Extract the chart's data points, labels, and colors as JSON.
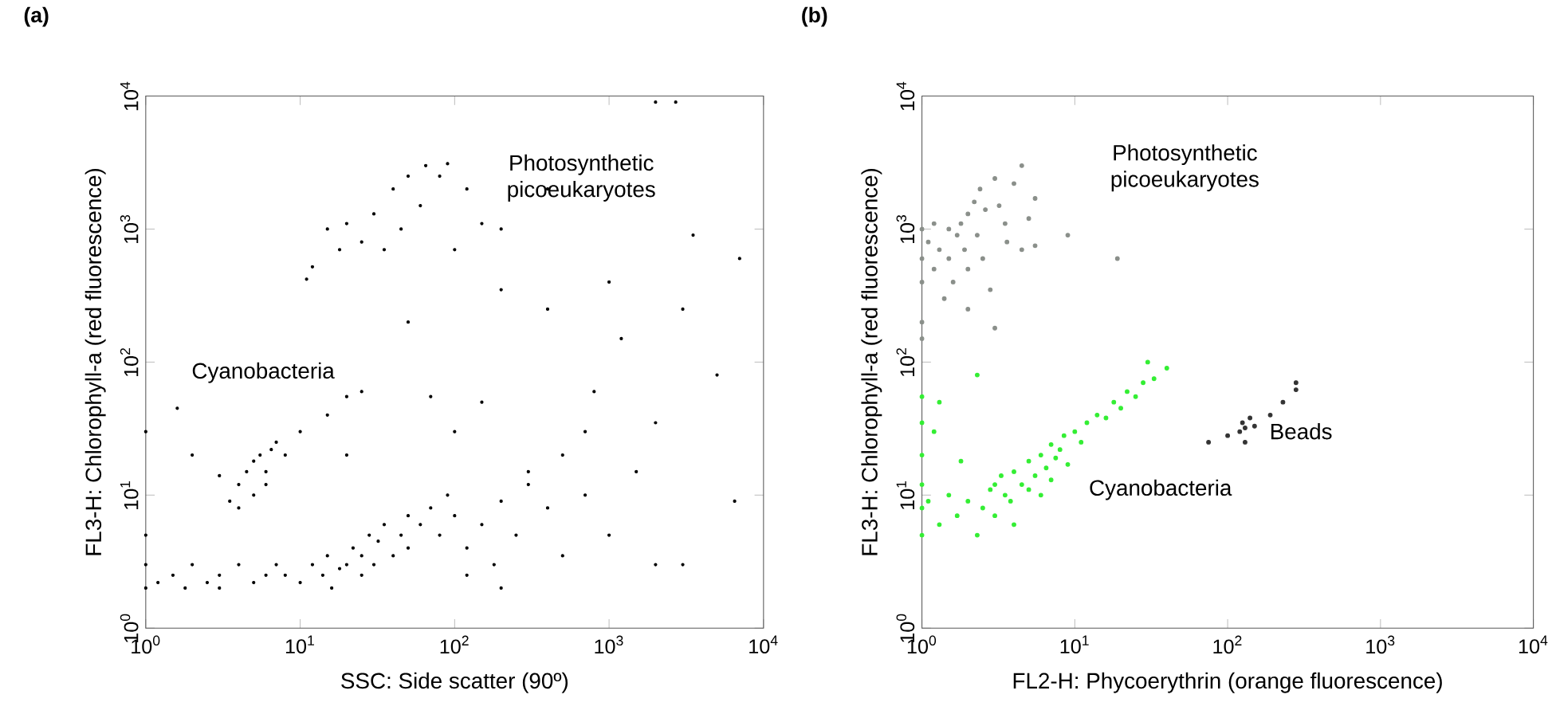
{
  "chart_data": [
    {
      "type": "scatter",
      "title": "(a)",
      "xlabel": "SSC: Side scatter (90º)",
      "ylabel": "FL3-H: Chlorophyll-a (red fluorescence)",
      "log": "xy",
      "xlim": [
        1,
        10000
      ],
      "ylim": [
        1,
        10000
      ],
      "xticks": [
        {
          "value": 1,
          "label": "10$^{0}$"
        },
        {
          "value": 10,
          "label": "10$^{1}$"
        },
        {
          "value": 100,
          "label": "10$^{2}$"
        },
        {
          "value": 1000,
          "label": "10$^{3}$"
        },
        {
          "value": 10000,
          "label": "10$^{4}$"
        }
      ],
      "yticks": [
        {
          "value": 1,
          "label": "10$^{0}$"
        },
        {
          "value": 10,
          "label": "10$^{1}$"
        },
        {
          "value": 100,
          "label": "10$^{2}$"
        },
        {
          "value": 1000,
          "label": "10$^{3}$"
        },
        {
          "value": 10000,
          "label": "10$^{4}$"
        }
      ],
      "series": [
        {
          "color": "#000000",
          "x": [
            1,
            1,
            1,
            1.2,
            1.5,
            1.8,
            2,
            2.5,
            3,
            3,
            4,
            5,
            6,
            7,
            8,
            10,
            12,
            14,
            15,
            16,
            18,
            20,
            22,
            25,
            25,
            28,
            30,
            32,
            35,
            40,
            45,
            50,
            50,
            60,
            70,
            80,
            90,
            100,
            120,
            150,
            180,
            200,
            250,
            300,
            400,
            500,
            700,
            1000,
            1500,
            2000,
            3.5,
            4,
            4.5,
            5,
            5.5,
            6,
            6.5,
            7,
            5,
            4,
            6,
            8,
            3,
            10,
            15,
            20,
            25,
            11,
            12,
            15,
            18,
            20,
            25,
            30,
            35,
            40,
            45,
            50,
            60,
            65,
            80,
            90,
            100,
            120,
            150,
            200,
            200,
            2000,
            2700,
            400,
            1000,
            3500,
            7000,
            1200,
            3000,
            5000,
            6500,
            3000,
            2000,
            800,
            400,
            50,
            20,
            100,
            150,
            1,
            1.6,
            2,
            70,
            700,
            300,
            500,
            200,
            120
          ],
          "values": [
            2,
            3,
            5,
            2.2,
            2.5,
            2,
            3,
            2.2,
            2.5,
            2,
            3,
            2.2,
            2.5,
            3,
            2.5,
            2.2,
            3,
            2.5,
            3.5,
            2,
            2.8,
            3,
            4,
            2.5,
            3.5,
            5,
            3,
            4.5,
            6,
            3.5,
            5,
            7,
            4,
            6,
            8,
            5,
            10,
            7,
            4,
            6,
            3,
            9,
            5,
            12,
            8,
            20,
            10,
            5,
            15,
            3,
            9,
            12,
            15,
            18,
            20,
            15,
            22,
            25,
            10,
            8,
            12,
            20,
            14,
            30,
            40,
            55,
            60,
            420,
            520,
            1000,
            700,
            1100,
            800,
            1300,
            700,
            2000,
            1000,
            2500,
            1500,
            3000,
            2500,
            3100,
            700,
            2000,
            1100,
            1000,
            350,
            9000,
            9000,
            2000,
            400,
            900,
            600,
            150,
            250,
            80,
            9,
            3,
            35,
            60,
            250,
            200,
            20,
            30,
            50,
            30,
            45,
            20,
            55,
            30,
            15,
            3.5,
            2,
            2.5
          ]
        }
      ],
      "annotations": [
        "Cyanobacteria",
        "Photosynthetic picoeukaryotes"
      ]
    },
    {
      "type": "scatter",
      "title": "(b)",
      "xlabel": "FL2-H: Phycoerythrin (orange fluorescence)",
      "ylabel": "FL3-H: Chlorophyll-a (red fluorescence)",
      "log": "xy",
      "xlim": [
        1,
        10000
      ],
      "ylim": [
        1,
        10000
      ],
      "xticks": [
        {
          "value": 1,
          "label": "10$^{0}$"
        },
        {
          "value": 10,
          "label": "10$^{1}$"
        },
        {
          "value": 100,
          "label": "10$^{2}$"
        },
        {
          "value": 1000,
          "label": "10$^{3}$"
        },
        {
          "value": 10000,
          "label": "10$^{4}$"
        }
      ],
      "yticks": [
        {
          "value": 1,
          "label": "10$^{0}$"
        },
        {
          "value": 10,
          "label": "10$^{1}$"
        },
        {
          "value": 100,
          "label": "10$^{2}$"
        },
        {
          "value": 1000,
          "label": "10$^{3}$"
        },
        {
          "value": 10000,
          "label": "10$^{4}$"
        }
      ],
      "series": [
        {
          "color": "#8a8f8a",
          "x": [
            1,
            1,
            1,
            1,
            1,
            1.1,
            1.2,
            1.2,
            1.3,
            1.4,
            1.5,
            1.5,
            1.6,
            1.7,
            1.8,
            1.9,
            2,
            2,
            2,
            2.2,
            2.3,
            2.4,
            2.5,
            2.6,
            2.8,
            3,
            3,
            3.2,
            3.5,
            3.6,
            4,
            4.5,
            4.5,
            5,
            5.5,
            5.5,
            9,
            19
          ],
          "values": [
            1000,
            600,
            400,
            200,
            150,
            800,
            500,
            1100,
            700,
            300,
            1000,
            600,
            400,
            900,
            1100,
            700,
            500,
            1300,
            250,
            1600,
            900,
            2000,
            600,
            1400,
            350,
            180,
            2400,
            1500,
            1100,
            800,
            2200,
            3000,
            700,
            1200,
            1700,
            750,
            900,
            600
          ]
        },
        {
          "color": "#33ee33",
          "x": [
            1,
            1,
            1,
            1,
            1,
            1,
            1.1,
            1.3,
            1.3,
            1.5,
            1.7,
            2,
            2.3,
            2.3,
            2.5,
            2.8,
            3,
            3,
            3.3,
            3.5,
            3.8,
            4,
            4,
            4.5,
            5,
            5,
            5.5,
            6,
            6,
            6.5,
            7,
            7,
            7.5,
            8,
            8.5,
            9,
            10,
            11,
            12,
            14,
            16,
            18,
            20,
            22,
            25,
            28,
            30,
            33,
            40,
            1.2,
            1.8
          ],
          "values": [
            5,
            8,
            12,
            20,
            35,
            55,
            9,
            6,
            50,
            10,
            7,
            9,
            80,
            5,
            8,
            11,
            7,
            12,
            14,
            10,
            9,
            15,
            6,
            12,
            18,
            11,
            14,
            20,
            10,
            16,
            24,
            13,
            19,
            22,
            28,
            17,
            30,
            25,
            35,
            40,
            38,
            50,
            45,
            60,
            55,
            70,
            100,
            75,
            90,
            30,
            18
          ]
        },
        {
          "color": "#333333",
          "x": [
            75,
            100,
            120,
            125,
            130,
            140,
            150,
            130,
            190,
            230,
            280,
            280
          ],
          "values": [
            25,
            28,
            30,
            35,
            32,
            38,
            33,
            25,
            40,
            50,
            70,
            62
          ]
        }
      ],
      "annotations": [
        "Photosynthetic picoeukaryotes",
        "Cyanobacteria",
        "Beads"
      ]
    }
  ]
}
